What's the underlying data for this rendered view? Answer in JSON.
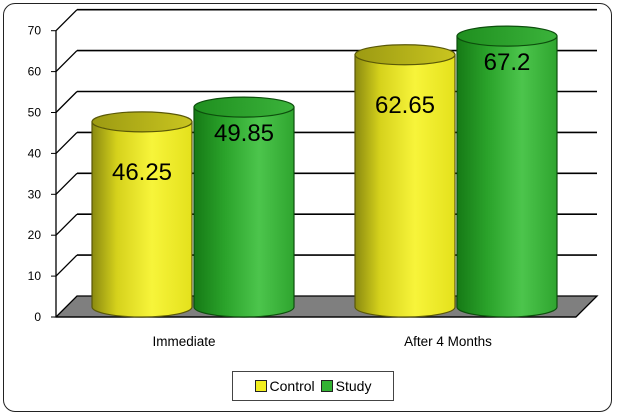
{
  "chart_data": {
    "type": "bar",
    "style": "3d-cylinder",
    "categories": [
      "Immediate",
      "After 4 Months"
    ],
    "series": [
      {
        "name": "Control",
        "values": [
          46.25,
          62.65
        ],
        "color": "#f2ef1f"
      },
      {
        "name": "Study",
        "values": [
          49.85,
          67.2
        ],
        "color": "#33b233"
      }
    ],
    "data_labels": [
      "46.25",
      "49.85",
      "62.65",
      "67.2"
    ],
    "yticks": [
      0,
      10,
      20,
      30,
      40,
      50,
      60,
      70
    ],
    "ylim": [
      0,
      70
    ],
    "grid": true,
    "legend": "bottom",
    "floor_color": "#7f7f7f",
    "title": "",
    "xlabel": "",
    "ylabel": ""
  }
}
